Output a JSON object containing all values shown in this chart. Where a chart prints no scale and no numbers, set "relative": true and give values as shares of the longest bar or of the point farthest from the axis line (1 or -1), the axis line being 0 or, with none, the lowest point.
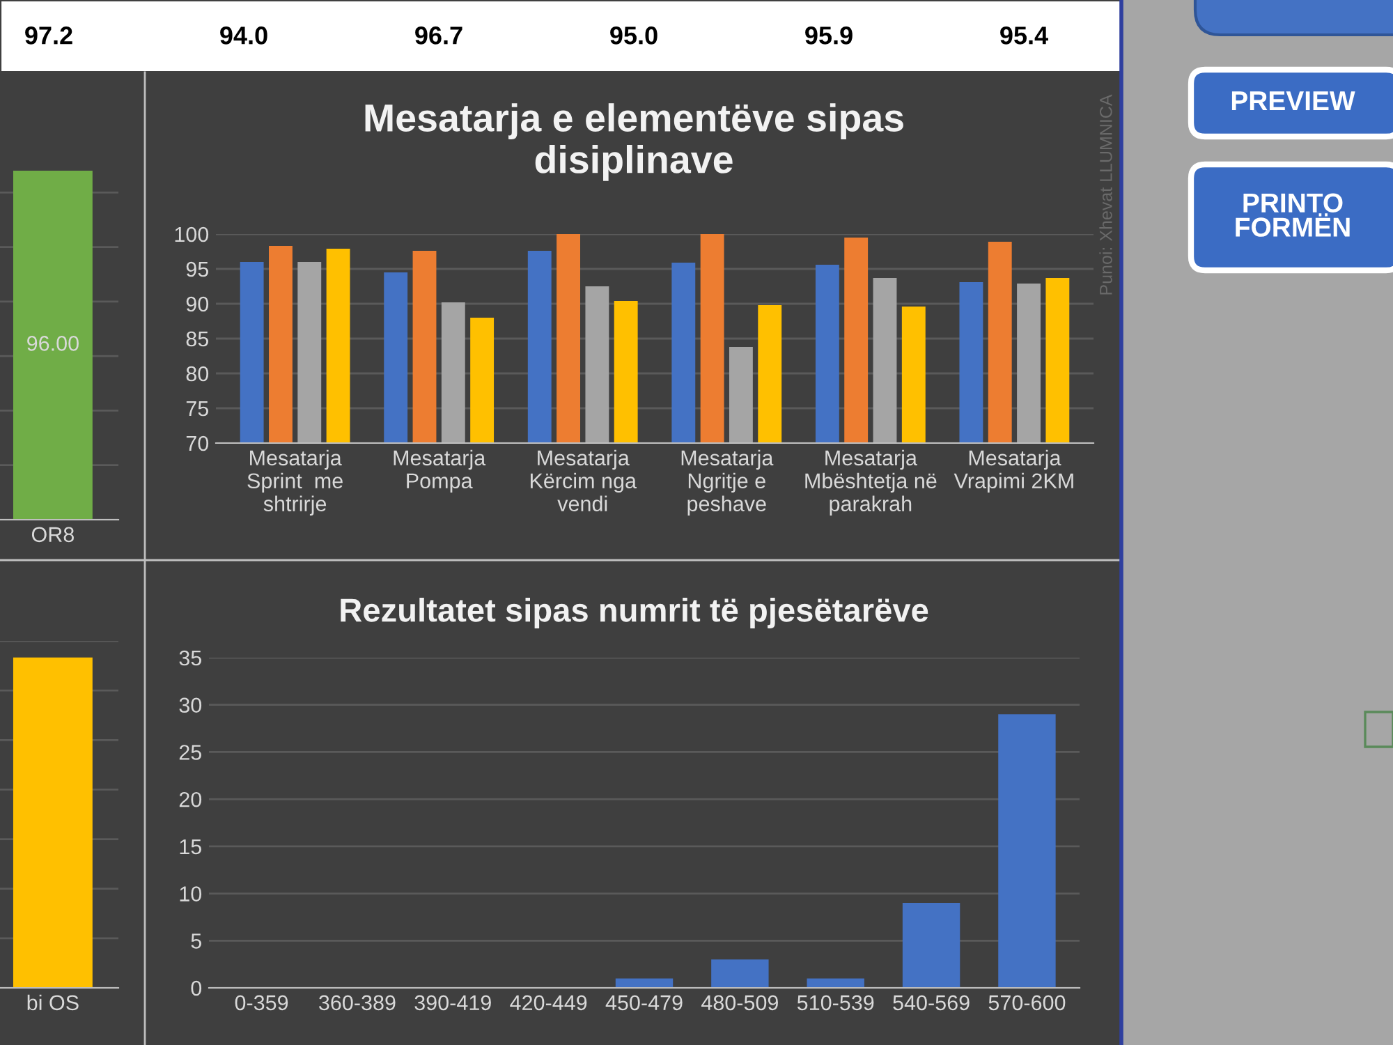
{
  "chart_data": [
    {
      "type": "other",
      "annotations": [
        "97.2",
        "94.0",
        "96.7",
        "95.0",
        "95.9",
        "95.4"
      ]
    },
    {
      "type": "bar",
      "categories": [
        "OR8"
      ],
      "values": [
        96
      ],
      "value_labels": [
        "96.00"
      ],
      "colors": [
        "#70ad47"
      ],
      "grid": "y",
      "tick_labels": "x"
    },
    {
      "type": "bar",
      "title": "Mesatarja e elementëve sipas\ndisiplinave",
      "categories": [
        "Mesatarja\nSprint  me\nshtrirje",
        "Mesatarja\nPompa",
        "Mesatarja\nKërcim nga\nvendi",
        "Mesatarja\nNgritje e\npeshave",
        "Mesatarja\nMbështetja në\nparakrah",
        "Mesatarja\nVrapimi 2KM"
      ],
      "series": [
        {
          "color": "#4472c4",
          "values": [
            96.0,
            94.5,
            97.6,
            95.9,
            95.6,
            93.1
          ]
        },
        {
          "color": "#ed7d31",
          "values": [
            98.3,
            97.6,
            100,
            100,
            99.5,
            98.9
          ]
        },
        {
          "color": "#a5a5a5",
          "values": [
            96.0,
            90.2,
            92.5,
            83.8,
            93.7,
            92.9
          ]
        },
        {
          "color": "#ffc000",
          "values": [
            97.9,
            88.0,
            90.4,
            89.8,
            89.6,
            93.7
          ]
        }
      ],
      "ylim": [
        70,
        100
      ],
      "yticks": [
        70,
        75,
        80,
        85,
        90,
        95,
        100
      ],
      "grid": "y",
      "annotations": [
        "Punoi: Xhevat LLUMNICA"
      ]
    },
    {
      "type": "other",
      "annotations": [
        "PREVIEW",
        "PRINTO\nFORMËN"
      ]
    },
    {
      "type": "bar",
      "categories": [
        "bi OS"
      ],
      "values": [
        1
      ],
      "colors": [
        "#ffc000"
      ],
      "relative": true,
      "grid": "y"
    },
    {
      "type": "bar",
      "title": "Rezultatet sipas numrit të pjesëtarëve",
      "categories": [
        "0-359",
        "360-389",
        "390-419",
        "420-449",
        "450-479",
        "480-509",
        "510-539",
        "540-569",
        "570-600"
      ],
      "series": [
        {
          "color": "#4472c4",
          "values": [
            0,
            0,
            0,
            0,
            1,
            3,
            1,
            9,
            29
          ]
        }
      ],
      "ylim": [
        0,
        35
      ],
      "yticks": [
        0,
        5,
        10,
        15,
        20,
        25,
        30,
        35
      ],
      "grid": "y"
    }
  ]
}
